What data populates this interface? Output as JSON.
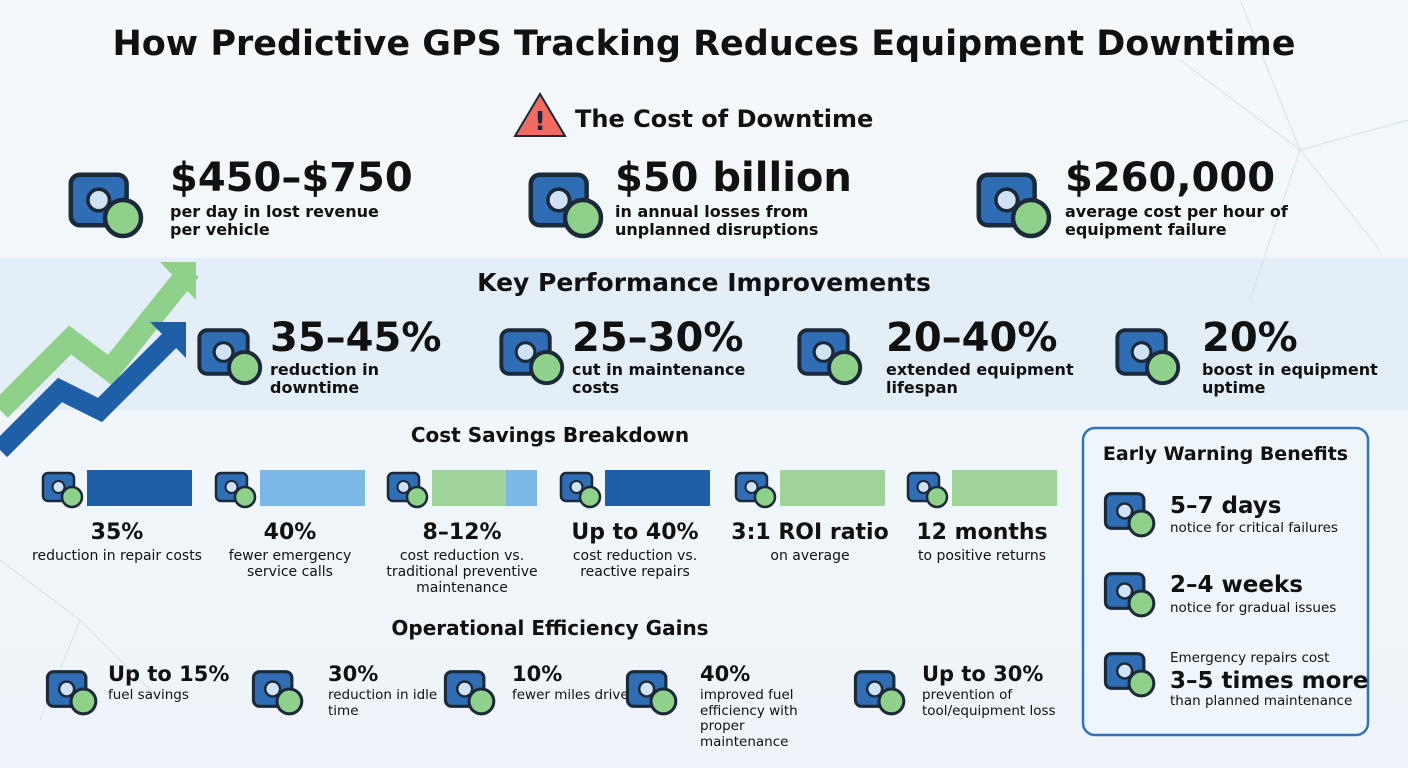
{
  "title": "How Predictive GPS Tracking Reduces Equipment Downtime",
  "cost_of_downtime": {
    "heading": "The Cost of Downtime",
    "items": [
      {
        "value": "$450–$750",
        "description": "per day in lost revenue per vehicle"
      },
      {
        "value": "$50 billion",
        "description": "in annual losses from unplanned disruptions"
      },
      {
        "value": "$260,000",
        "description": "average cost per hour of equipment failure"
      }
    ]
  },
  "key_performance": {
    "heading": "Key Performance Improvements",
    "items": [
      {
        "value": "35–45%",
        "description": "reduction in downtime"
      },
      {
        "value": "25–30%",
        "description": "cut in maintenance costs"
      },
      {
        "value": "20–40%",
        "description": "extended equipment lifespan"
      },
      {
        "value": "20%",
        "description": "boost in equipment uptime"
      }
    ]
  },
  "cost_savings": {
    "heading": "Cost Savings Breakdown",
    "items": [
      {
        "value": "35%",
        "description": "reduction in repair costs"
      },
      {
        "value": "40%",
        "description": "fewer emergency service calls"
      },
      {
        "value": "8–12%",
        "description": "cost reduction vs. traditional preventive maintenance"
      },
      {
        "value": "Up to 40%",
        "description": "cost reduction vs. reactive repairs"
      },
      {
        "value": "3:1 ROI ratio",
        "description": "on average"
      },
      {
        "value": "12 months",
        "description": "to positive returns"
      }
    ]
  },
  "operational": {
    "heading": "Operational Efficiency Gains",
    "items": [
      {
        "value": "Up to 15%",
        "description": "fuel savings"
      },
      {
        "value": "30%",
        "description": "reduction in idle time"
      },
      {
        "value": "10%",
        "description": "fewer miles driven"
      },
      {
        "value": "40%",
        "description": "improved fuel efficiency with proper maintenance"
      },
      {
        "value": "Up to 30%",
        "description": "prevention of tool/equipment loss"
      }
    ]
  },
  "early_warning": {
    "heading": "Early Warning Benefits",
    "items": [
      {
        "value": "5–7 days",
        "description": "notice for critical failures"
      },
      {
        "value": "2–4 weeks",
        "description": "notice for gradual issues"
      },
      {
        "lead": "Emergency repairs cost",
        "value": "3–5 times more",
        "description": "than planned maintenance"
      }
    ]
  }
}
